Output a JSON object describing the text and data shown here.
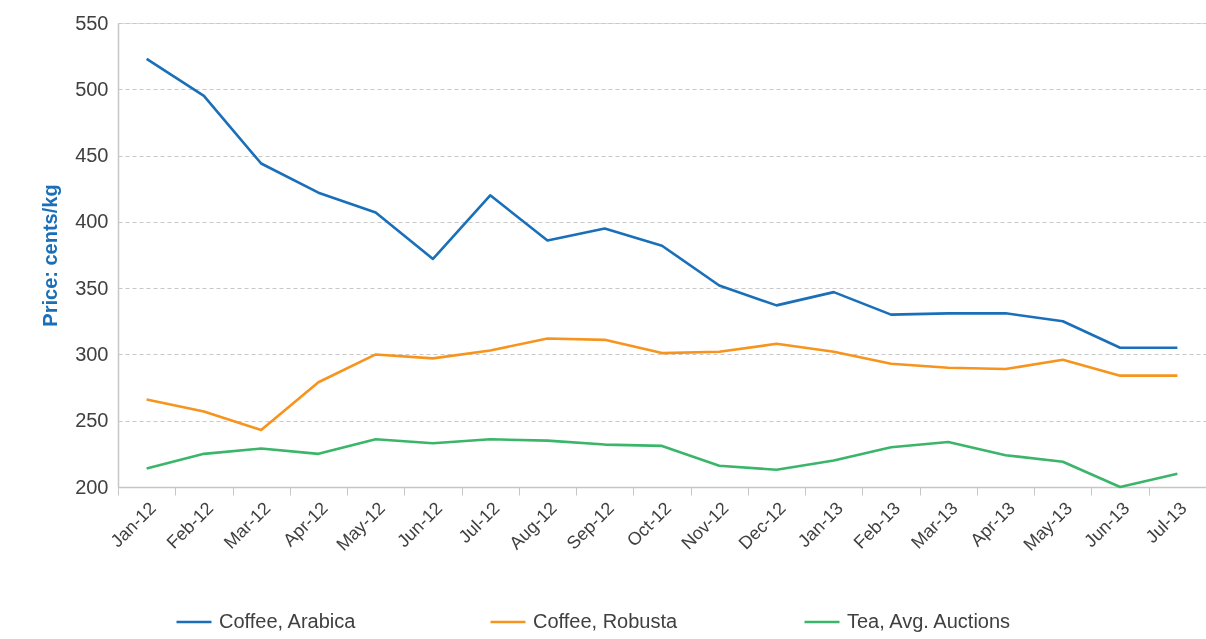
{
  "chart_data": {
    "type": "line",
    "ylabel": "Price: cents/kg",
    "categories": [
      "Jan-12",
      "Feb-12",
      "Mar-12",
      "Apr-12",
      "May-12",
      "Jun-12",
      "Jul-12",
      "Aug-12",
      "Sep-12",
      "Oct-12",
      "Nov-12",
      "Dec-12",
      "Jan-13",
      "Feb-13",
      "Mar-13",
      "Apr-13",
      "May-13",
      "Jun-13",
      "Jul-13"
    ],
    "series": [
      {
        "name": "Coffee, Arabica",
        "color": "#1a6fb9",
        "values": [
          523,
          495,
          444,
          422,
          407,
          372,
          420,
          386,
          395,
          382,
          352,
          337,
          347,
          330,
          331,
          331,
          325,
          305,
          305
        ]
      },
      {
        "name": "Coffee, Robusta",
        "color": "#f7941d",
        "values": [
          266,
          257,
          243,
          279,
          300,
          297,
          303,
          312,
          311,
          301,
          302,
          308,
          302,
          293,
          290,
          289,
          296,
          284,
          284
        ]
      },
      {
        "name": "Tea, Avg. Auctions",
        "color": "#3bb56a",
        "values": [
          214,
          225,
          229,
          225,
          236,
          233,
          236,
          235,
          232,
          231,
          216,
          213,
          220,
          230,
          234,
          224,
          219,
          200,
          210
        ]
      }
    ],
    "ylim": [
      200,
      550
    ],
    "yticks": [
      200,
      250,
      300,
      350,
      400,
      450,
      500,
      550
    ],
    "grid": "y",
    "legend": "bottom",
    "marker": "none",
    "line_style": "solid"
  }
}
